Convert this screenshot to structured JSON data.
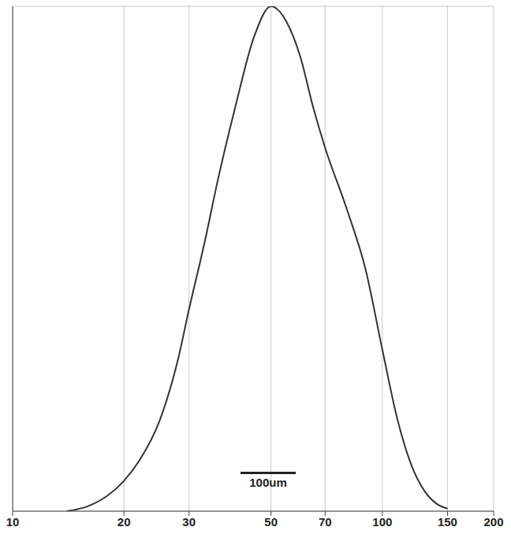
{
  "chart_data": {
    "type": "line",
    "annotation": "100um",
    "log": "x",
    "grid": true,
    "tick_labels": "x",
    "color": "#333333",
    "xlim": [
      10,
      200
    ],
    "xticks": [
      10,
      20,
      30,
      50,
      70,
      100,
      150,
      200
    ],
    "ylim": [
      0,
      100
    ],
    "yticks": [
      0,
      20,
      40,
      60,
      80,
      100
    ],
    "x": [
      14,
      16,
      18,
      20,
      22,
      25,
      28,
      30,
      33,
      36,
      40,
      45,
      50,
      55,
      60,
      65,
      70,
      80,
      90,
      100,
      110,
      120,
      130,
      140,
      150
    ],
    "values": [
      0,
      1,
      3,
      6,
      10,
      18,
      30,
      40,
      53,
      66,
      80,
      94,
      100,
      97,
      90,
      80,
      72,
      60,
      48,
      32,
      18,
      9,
      4,
      1.5,
      0.5
    ]
  }
}
